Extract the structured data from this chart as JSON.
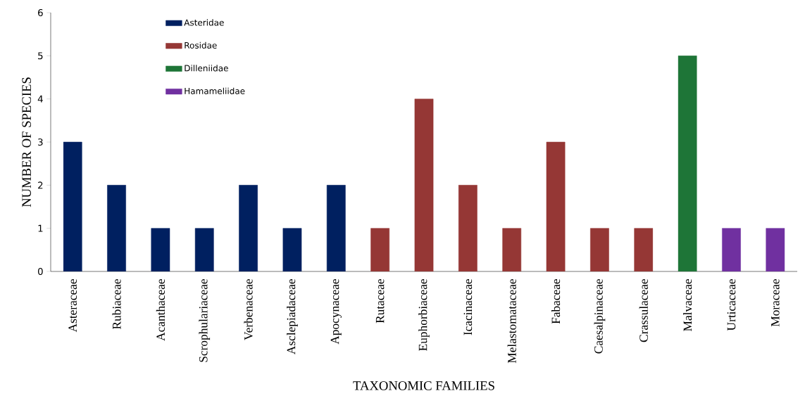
{
  "chart_data": {
    "type": "bar",
    "xlabel": "TAXONOMIC FAMILIES",
    "ylabel": "NUMBER OF SPECIES",
    "categories": [
      "Asteraceae",
      "Rubiaceae",
      "Acanthaceae",
      "Scrophulariaceae",
      "Verbenaceae",
      "Asclepiadaceae",
      "Apocynaceae",
      "Rutaceae",
      "Euphorbiaceae",
      "Icacinaceae",
      "Melastomataceae",
      "Fabaceae",
      "Caesalpinaceae",
      "Crassulaceae",
      "Malvaceae",
      "Urticaceae",
      "Moraceae"
    ],
    "series": [
      {
        "name": "Asteridae",
        "color": "#002060",
        "values": [
          3,
          2,
          1,
          1,
          2,
          1,
          2,
          null,
          null,
          null,
          null,
          null,
          null,
          null,
          null,
          null,
          null
        ]
      },
      {
        "name": "Rosidae",
        "color": "#953735",
        "values": [
          null,
          null,
          null,
          null,
          null,
          null,
          null,
          1,
          4,
          2,
          1,
          3,
          1,
          1,
          null,
          null,
          null
        ]
      },
      {
        "name": "Dilleniidae",
        "color": "#1e7537",
        "values": [
          null,
          null,
          null,
          null,
          null,
          null,
          null,
          null,
          null,
          null,
          null,
          null,
          null,
          null,
          5,
          null,
          null
        ]
      },
      {
        "name": "Hamameliidae",
        "color": "#7030a0",
        "values": [
          null,
          null,
          null,
          null,
          null,
          null,
          null,
          null,
          null,
          null,
          null,
          null,
          null,
          null,
          null,
          1,
          1
        ]
      }
    ],
    "ylim": [
      0,
      6
    ],
    "yticks": [
      0,
      1,
      2,
      3,
      4,
      5,
      6
    ],
    "legend": "top left"
  }
}
